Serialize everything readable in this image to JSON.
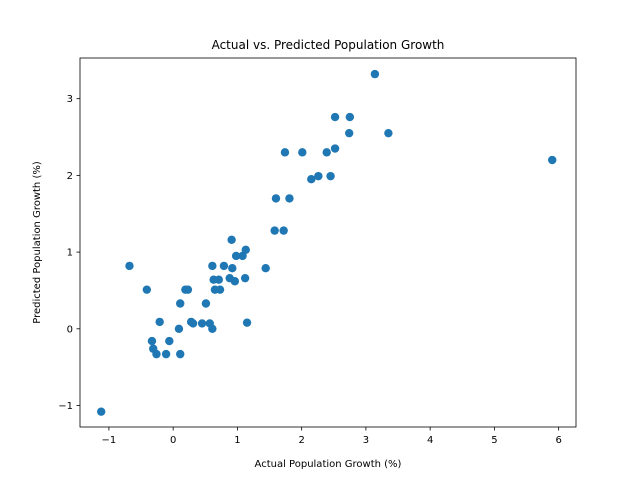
{
  "chart_data": {
    "type": "scatter",
    "title": "Actual vs. Predicted Population Growth",
    "xlabel": "Actual Population Growth (%)",
    "ylabel": "Predicted Population Growth (%)",
    "xlim": [
      -1.45,
      6.27
    ],
    "ylim": [
      -1.28,
      3.53
    ],
    "xticks": [
      -1,
      0,
      1,
      2,
      3,
      4,
      5,
      6
    ],
    "yticks": [
      -1,
      0,
      1,
      2,
      3
    ],
    "xtick_labels": [
      "−1",
      "0",
      "1",
      "2",
      "3",
      "4",
      "5",
      "6"
    ],
    "ytick_labels": [
      "−1",
      "0",
      "1",
      "2",
      "3"
    ],
    "grid": false,
    "marker_color": "#1f77b4",
    "series": [
      {
        "points": [
          [
            -1.12,
            -1.08
          ],
          [
            -0.68,
            0.82
          ],
          [
            -0.41,
            0.51
          ],
          [
            -0.33,
            -0.16
          ],
          [
            -0.31,
            -0.26
          ],
          [
            -0.26,
            -0.33
          ],
          [
            -0.21,
            0.09
          ],
          [
            -0.11,
            -0.33
          ],
          [
            -0.06,
            -0.16
          ],
          [
            0.09,
            0.0
          ],
          [
            0.11,
            0.33
          ],
          [
            0.11,
            -0.33
          ],
          [
            0.19,
            0.51
          ],
          [
            0.23,
            0.51
          ],
          [
            0.28,
            0.09
          ],
          [
            0.31,
            0.07
          ],
          [
            0.45,
            0.07
          ],
          [
            0.51,
            0.33
          ],
          [
            0.57,
            0.07
          ],
          [
            0.61,
            0.0
          ],
          [
            0.61,
            0.82
          ],
          [
            0.63,
            0.64
          ],
          [
            0.65,
            0.51
          ],
          [
            0.71,
            0.64
          ],
          [
            0.73,
            0.51
          ],
          [
            0.79,
            0.82
          ],
          [
            0.88,
            0.66
          ],
          [
            0.91,
            1.16
          ],
          [
            0.92,
            0.79
          ],
          [
            0.96,
            0.62
          ],
          [
            0.98,
            0.95
          ],
          [
            1.08,
            0.95
          ],
          [
            1.12,
            0.66
          ],
          [
            1.13,
            1.03
          ],
          [
            1.15,
            0.08
          ],
          [
            1.44,
            0.79
          ],
          [
            1.58,
            1.28
          ],
          [
            1.6,
            1.7
          ],
          [
            1.72,
            1.28
          ],
          [
            1.74,
            2.3
          ],
          [
            1.81,
            1.7
          ],
          [
            2.01,
            2.3
          ],
          [
            2.15,
            1.95
          ],
          [
            2.26,
            1.99
          ],
          [
            2.39,
            2.3
          ],
          [
            2.45,
            1.99
          ],
          [
            2.52,
            2.35
          ],
          [
            2.52,
            2.76
          ],
          [
            2.74,
            2.55
          ],
          [
            2.75,
            2.76
          ],
          [
            3.14,
            3.32
          ],
          [
            3.35,
            2.55
          ],
          [
            5.9,
            2.2
          ]
        ]
      }
    ]
  }
}
